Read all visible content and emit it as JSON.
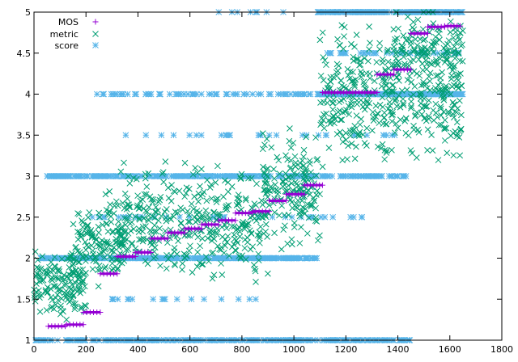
{
  "chart_data": {
    "type": "scatter",
    "title": "",
    "xlabel": "",
    "ylabel": "",
    "xlim": [
      0,
      1800
    ],
    "ylim": [
      1,
      5
    ],
    "x_ticks": [
      "0",
      "200",
      "400",
      "600",
      "800",
      "1000",
      "1200",
      "1400",
      "1600",
      "1800"
    ],
    "y_ticks": [
      "1",
      "1.5",
      "2",
      "2.5",
      "3",
      "3.5",
      "4",
      "4.5",
      "5"
    ],
    "grid": false,
    "legend_position": "top-left",
    "series": [
      {
        "name": "MOS",
        "marker": "plus",
        "color": "#9400d3",
        "segments": [
          {
            "x": [
              55,
              120
            ],
            "y": 1.17
          },
          {
            "x": [
              125,
              190
            ],
            "y": 1.19
          },
          {
            "x": [
              190,
              255
            ],
            "y": 1.34
          },
          {
            "x": [
              255,
              320
            ],
            "y": 1.81
          },
          {
            "x": [
              320,
              390
            ],
            "y": 2.02
          },
          {
            "x": [
              390,
              450
            ],
            "y": 2.07
          },
          {
            "x": [
              450,
              515
            ],
            "y": 2.24
          },
          {
            "x": [
              515,
              580
            ],
            "y": 2.31
          },
          {
            "x": [
              580,
              645
            ],
            "y": 2.36
          },
          {
            "x": [
              645,
              710
            ],
            "y": 2.41
          },
          {
            "x": [
              710,
              775
            ],
            "y": 2.46
          },
          {
            "x": [
              775,
              840
            ],
            "y": 2.55
          },
          {
            "x": [
              840,
              905
            ],
            "y": 2.57
          },
          {
            "x": [
              905,
              970
            ],
            "y": 2.7
          },
          {
            "x": [
              970,
              1040
            ],
            "y": 2.78
          },
          {
            "x": [
              1040,
              1110
            ],
            "y": 2.89
          },
          {
            "x": [
              1110,
              1320
            ],
            "y": 4.02
          },
          {
            "x": [
              1320,
              1385
            ],
            "y": 4.24
          },
          {
            "x": [
              1385,
              1450
            ],
            "y": 4.3
          },
          {
            "x": [
              1450,
              1515
            ],
            "y": 4.74
          },
          {
            "x": [
              1515,
              1580
            ],
            "y": 4.82
          },
          {
            "x": [
              1580,
              1640
            ],
            "y": 4.83
          }
        ]
      },
      {
        "name": "metric",
        "marker": "x",
        "color": "#009e73",
        "clusters": [
          {
            "x": [
              0,
              200
            ],
            "center": 1.7,
            "spread": 0.35,
            "n": 160
          },
          {
            "x": [
              150,
              350
            ],
            "center": 2.2,
            "spread": 0.45,
            "n": 140
          },
          {
            "x": [
              330,
              900
            ],
            "center": 2.45,
            "spread": 0.55,
            "n": 380
          },
          {
            "x": [
              880,
              1100
            ],
            "center": 2.85,
            "spread": 0.55,
            "n": 170
          },
          {
            "x": [
              1100,
              1650
            ],
            "center": 4.0,
            "spread": 0.65,
            "n": 420
          },
          {
            "x": [
              1380,
              1650
            ],
            "center": 4.55,
            "spread": 0.4,
            "n": 120
          }
        ]
      },
      {
        "name": "score",
        "marker": "star",
        "color": "#56b4e9",
        "levels": [
          {
            "y": 1.0,
            "x": [
              0,
              1450
            ],
            "n": 330
          },
          {
            "y": 2.0,
            "x": [
              20,
              1090
            ],
            "n": 330
          },
          {
            "y": 3.0,
            "x": [
              50,
              1110
            ],
            "n": 300
          },
          {
            "y": 3.0,
            "x": [
              1110,
              1450
            ],
            "n": 60
          },
          {
            "y": 4.0,
            "x": [
              240,
              1090
            ],
            "n": 70
          },
          {
            "y": 4.0,
            "x": [
              1090,
              1650
            ],
            "n": 300
          },
          {
            "y": 5.0,
            "x": [
              560,
              1000
            ],
            "n": 8
          },
          {
            "y": 5.0,
            "x": [
              1090,
              1650
            ],
            "n": 220
          },
          {
            "y": 2.5,
            "x": [
              200,
              1300
            ],
            "n": 35
          },
          {
            "y": 1.5,
            "x": [
              300,
              880
            ],
            "n": 18
          },
          {
            "y": 3.5,
            "x": [
              320,
              1420
            ],
            "n": 30
          },
          {
            "y": 4.5,
            "x": [
              1120,
              1650
            ],
            "n": 40
          }
        ]
      }
    ]
  }
}
